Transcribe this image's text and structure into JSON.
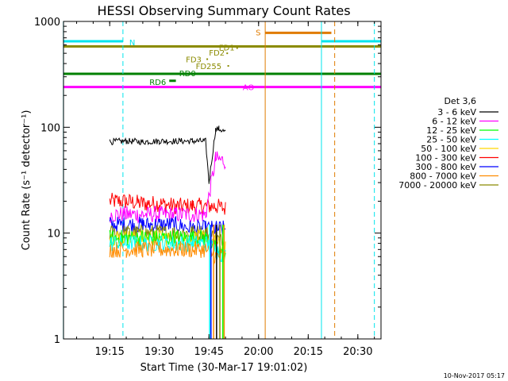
{
  "chart_data": {
    "type": "line",
    "title": "HESSI Observing Summary Count Rates",
    "xlabel": "Start Time (30-Mar-17 19:01:02)",
    "ylabel": "Count Rate (s⁻¹ detector⁻¹)",
    "y_scale": "log",
    "ylim": [
      1,
      1000
    ],
    "xlim": [
      "19:01:02",
      "20:37:00"
    ],
    "x_ticks": [
      "19:15",
      "19:30",
      "19:45",
      "20:00",
      "20:15",
      "20:30"
    ],
    "y_ticks": [
      "1",
      "10",
      "100",
      "1000"
    ],
    "grid": false,
    "legend": {
      "title": "Det 3,6",
      "placement": "right",
      "entries": [
        {
          "label": "3 - 6 keV",
          "color": "#000000"
        },
        {
          "label": "6 - 12 keV",
          "color": "#ff00ff"
        },
        {
          "label": "12 - 25 keV",
          "color": "#00ff00"
        },
        {
          "label": "25 - 50 keV",
          "color": "#00ffff"
        },
        {
          "label": "50 - 100 keV",
          "color": "#ffd700"
        },
        {
          "label": "100 - 300 keV",
          "color": "#ff0000"
        },
        {
          "label": "300 - 800 keV",
          "color": "#0000ff"
        },
        {
          "label": "800 - 7000 keV",
          "color": "#ff8c00"
        },
        {
          "label": "7000 - 20000 keV",
          "color": "#8b8b00"
        }
      ]
    },
    "series": [
      {
        "name": "3 - 6 keV",
        "color": "#000000",
        "points": [
          [
            "19:15",
            73
          ],
          [
            "19:20",
            74
          ],
          [
            "19:25",
            73
          ],
          [
            "19:30",
            74
          ],
          [
            "19:35",
            74
          ],
          [
            "19:40",
            74
          ],
          [
            "19:44",
            74
          ],
          [
            "19:45",
            30
          ],
          [
            "19:47",
            95
          ],
          [
            "19:48",
            97
          ],
          [
            "19:50",
            90
          ]
        ]
      },
      {
        "name": "6 - 12 keV",
        "color": "#ff00ff",
        "points": [
          [
            "19:15",
            15
          ],
          [
            "19:20",
            15
          ],
          [
            "19:25",
            15
          ],
          [
            "19:30",
            15
          ],
          [
            "19:35",
            15
          ],
          [
            "19:40",
            15
          ],
          [
            "19:44",
            15
          ],
          [
            "19:47",
            50
          ],
          [
            "19:50",
            48
          ]
        ]
      },
      {
        "name": "12 - 25 keV",
        "color": "#00ff00",
        "points": [
          [
            "19:15",
            9
          ],
          [
            "19:20",
            9
          ],
          [
            "19:25",
            9
          ],
          [
            "19:30",
            9
          ],
          [
            "19:35",
            9
          ],
          [
            "19:40",
            9
          ],
          [
            "19:44",
            9
          ],
          [
            "19:47",
            7
          ],
          [
            "19:50",
            6
          ]
        ]
      },
      {
        "name": "25 - 50 keV",
        "color": "#00ffff",
        "points": [
          [
            "19:15",
            8
          ],
          [
            "19:20",
            8
          ],
          [
            "19:25",
            8
          ],
          [
            "19:30",
            8
          ],
          [
            "19:35",
            8
          ],
          [
            "19:40",
            8
          ],
          [
            "19:44",
            8
          ],
          [
            "19:47",
            7
          ],
          [
            "19:50",
            6
          ]
        ]
      },
      {
        "name": "50 - 100 keV",
        "color": "#ffd700",
        "points": [
          [
            "19:15",
            9
          ],
          [
            "19:20",
            9
          ],
          [
            "19:25",
            9
          ],
          [
            "19:30",
            9
          ],
          [
            "19:35",
            9
          ],
          [
            "19:40",
            9
          ],
          [
            "19:44",
            9
          ],
          [
            "19:47",
            8
          ],
          [
            "19:50",
            7
          ]
        ]
      },
      {
        "name": "100 - 300 keV",
        "color": "#ff0000",
        "points": [
          [
            "19:15",
            20
          ],
          [
            "19:20",
            20
          ],
          [
            "19:25",
            19
          ],
          [
            "19:30",
            19
          ],
          [
            "19:35",
            18
          ],
          [
            "19:40",
            18
          ],
          [
            "19:44",
            18
          ],
          [
            "19:47",
            18
          ],
          [
            "19:50",
            17
          ]
        ]
      },
      {
        "name": "300 - 800 keV",
        "color": "#0000ff",
        "points": [
          [
            "19:15",
            12
          ],
          [
            "19:20",
            12
          ],
          [
            "19:25",
            12
          ],
          [
            "19:30",
            12
          ],
          [
            "19:35",
            12
          ],
          [
            "19:40",
            11
          ],
          [
            "19:44",
            11
          ],
          [
            "19:47",
            11
          ],
          [
            "19:50",
            11
          ]
        ]
      },
      {
        "name": "800 - 7000 keV",
        "color": "#ff8c00",
        "points": [
          [
            "19:15",
            7
          ],
          [
            "19:20",
            7
          ],
          [
            "19:25",
            7
          ],
          [
            "19:30",
            7
          ],
          [
            "19:35",
            7
          ],
          [
            "19:40",
            7
          ],
          [
            "19:44",
            7
          ],
          [
            "19:47",
            6
          ],
          [
            "19:50",
            6
          ]
        ]
      },
      {
        "name": "7000 - 20000 keV",
        "color": "#8b8b00",
        "points": [
          [
            "19:15",
            10
          ],
          [
            "19:20",
            10
          ],
          [
            "19:25",
            10
          ],
          [
            "19:30",
            10
          ],
          [
            "19:35",
            10
          ],
          [
            "19:40",
            10
          ],
          [
            "19:44",
            10
          ],
          [
            "19:47",
            9
          ],
          [
            "19:50",
            8
          ]
        ]
      }
    ],
    "flag_lines": [
      {
        "label": "N",
        "color": "#00e5ee",
        "y": 650,
        "segments": [
          [
            "19:01",
            "19:19"
          ],
          [
            "20:19",
            "20:37"
          ]
        ]
      },
      {
        "label": "S",
        "color": "#e07b00",
        "y": 780,
        "segments": [
          [
            "20:02",
            "20:22"
          ]
        ]
      },
      {
        "label": "",
        "color": "#8b8b00",
        "y": 580,
        "segments": [
          [
            "19:01",
            "20:37"
          ]
        ]
      },
      {
        "label": "FD1",
        "color": "#8b8b00",
        "y": 560,
        "segments": []
      },
      {
        "label": "FD2",
        "color": "#8b8b00",
        "y": 500,
        "segments": []
      },
      {
        "label": "FD3",
        "color": "#8b8b00",
        "y": 440,
        "segments": []
      },
      {
        "label": "FD255",
        "color": "#8b8b00",
        "y": 380,
        "segments": []
      },
      {
        "label": "RD0",
        "color": "#008000",
        "y": 320,
        "segments": [
          [
            "19:01",
            "20:37"
          ]
        ]
      },
      {
        "label": "RD6",
        "color": "#008000",
        "y": 275,
        "segments": [
          [
            "19:33",
            "19:35"
          ]
        ]
      },
      {
        "label": "AO",
        "color": "#ff00ff",
        "y": 240,
        "segments": [
          [
            "19:01",
            "20:37"
          ]
        ]
      }
    ],
    "vertical_lines": [
      {
        "time": "19:01",
        "color": "#00e5ee",
        "style": "solid"
      },
      {
        "time": "19:19",
        "color": "#00e5ee",
        "style": "dashed"
      },
      {
        "time": "20:02",
        "color": "#e07b00",
        "style": "solid"
      },
      {
        "time": "20:19",
        "color": "#00e5ee",
        "style": "solid"
      },
      {
        "time": "20:23",
        "color": "#e07b00",
        "style": "dashed"
      },
      {
        "time": "20:35",
        "color": "#00e5ee",
        "style": "dashed"
      }
    ]
  },
  "footer": {
    "date_stamp": "10-Nov-2017 05:17"
  }
}
